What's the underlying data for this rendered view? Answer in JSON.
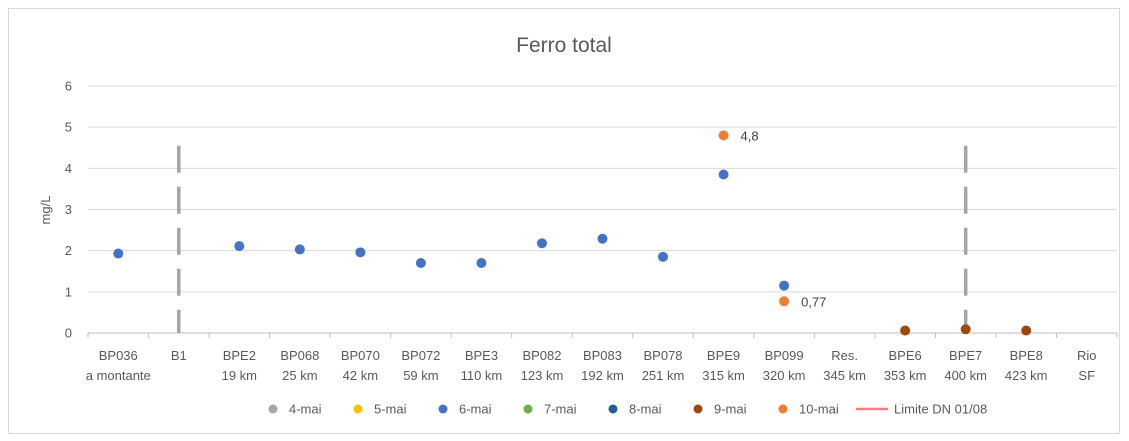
{
  "chart_data": {
    "type": "scatter",
    "title": "Ferro total",
    "ylabel": "mg/L",
    "xlabel": "",
    "ylim": [
      0,
      6
    ],
    "yticks": [
      0,
      1,
      2,
      3,
      4,
      5,
      6
    ],
    "grid": true,
    "legend_position": "bottom",
    "categories": [
      {
        "code": "BP036",
        "sub": "a montante"
      },
      {
        "code": "B1",
        "sub": ""
      },
      {
        "code": "BPE2",
        "sub": "19 km"
      },
      {
        "code": "BP068",
        "sub": "25 km"
      },
      {
        "code": "BP070",
        "sub": "42 km"
      },
      {
        "code": "BP072",
        "sub": "59 km"
      },
      {
        "code": "BPE3",
        "sub": "110 km"
      },
      {
        "code": "BP082",
        "sub": "123 km"
      },
      {
        "code": "BP083",
        "sub": "192 km"
      },
      {
        "code": "BP078",
        "sub": "251 km"
      },
      {
        "code": "BPE9",
        "sub": "315 km"
      },
      {
        "code": "BP099",
        "sub": "320 km"
      },
      {
        "code": "Res.",
        "sub": "345 km"
      },
      {
        "code": "BPE6",
        "sub": "353 km"
      },
      {
        "code": "BPE7",
        "sub": "400 km"
      },
      {
        "code": "BPE8",
        "sub": "423 km"
      },
      {
        "code": "Rio",
        "sub": "SF"
      }
    ],
    "series": [
      {
        "name": "4-mai",
        "color": "#a5a5a5",
        "marker": "circle",
        "points": []
      },
      {
        "name": "5-mai",
        "color": "#ffc000",
        "marker": "circle",
        "points": []
      },
      {
        "name": "6-mai",
        "color": "#4472c4",
        "marker": "circle",
        "points": [
          {
            "x": "BP036",
            "y": 1.93
          },
          {
            "x": "BPE2",
            "y": 2.11
          },
          {
            "x": "BP068",
            "y": 2.03
          },
          {
            "x": "BP070",
            "y": 1.96
          },
          {
            "x": "BP072",
            "y": 1.7
          },
          {
            "x": "BPE3",
            "y": 1.7
          },
          {
            "x": "BP082",
            "y": 2.18
          },
          {
            "x": "BP083",
            "y": 2.29
          },
          {
            "x": "BP078",
            "y": 1.85
          },
          {
            "x": "BPE9",
            "y": 3.85
          },
          {
            "x": "BP099",
            "y": 1.15
          }
        ]
      },
      {
        "name": "7-mai",
        "color": "#70ad47",
        "marker": "circle",
        "points": []
      },
      {
        "name": "8-mai",
        "color": "#255e91",
        "marker": "circle",
        "points": []
      },
      {
        "name": "9-mai",
        "color": "#9e480e",
        "marker": "circle",
        "points": [
          {
            "x": "BPE6",
            "y": 0.06
          },
          {
            "x": "BPE7",
            "y": 0.09
          },
          {
            "x": "BPE8",
            "y": 0.06
          }
        ]
      },
      {
        "name": "10-mai",
        "color": "#ed7d31",
        "marker": "circle",
        "points": [
          {
            "x": "BPE9",
            "y": 4.8,
            "label": "4,8"
          },
          {
            "x": "BP099",
            "y": 0.77,
            "label": "0,77"
          }
        ]
      },
      {
        "name": "Limite DN 01/08",
        "color": "#ff7c80",
        "marker": "line",
        "points": []
      }
    ],
    "dividers": [
      {
        "between": [
          "B1"
        ],
        "color": "#a5a5a5",
        "from": 0,
        "to": 4.55
      },
      {
        "between": [
          "BPE7"
        ],
        "color": "#a5a5a5",
        "from": 0,
        "to": 4.55
      }
    ]
  }
}
